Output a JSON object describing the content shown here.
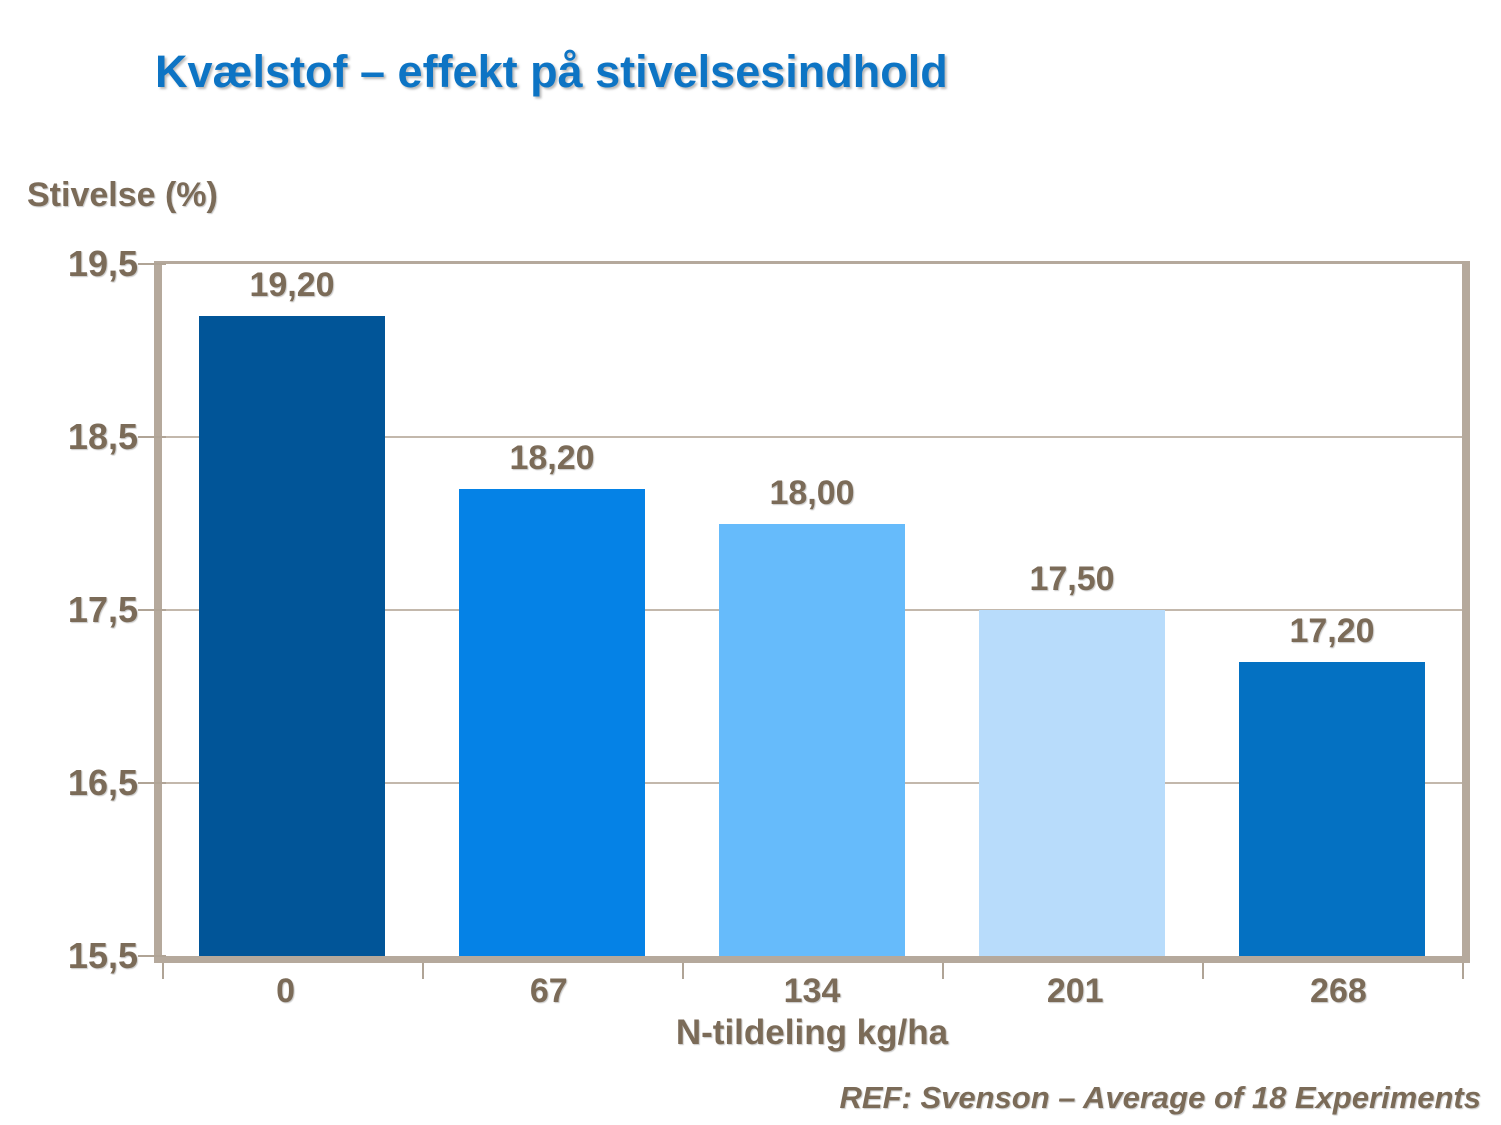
{
  "header": {
    "title": "Kvælstof – effekt på stivelsesindhold"
  },
  "footer": {
    "text": "REF: Svenson – Average of 18 Experiments"
  },
  "chart_data": {
    "type": "bar",
    "title": "Kvælstof – effekt på stivelsesindhold",
    "y_axis_title": "Stivelse (%)",
    "xlabel": "N-tildeling kg/ha",
    "categories": [
      "0",
      "67",
      "134",
      "201",
      "268"
    ],
    "values": [
      19.2,
      18.2,
      18.0,
      17.5,
      17.2
    ],
    "value_labels": [
      "19,20",
      "18,20",
      "18,00",
      "17,50",
      "17,20"
    ],
    "y_tick_labels": [
      "19,5",
      "18,5",
      "17,5",
      "16,5",
      "15,5"
    ],
    "ylim": [
      15.5,
      19.5
    ],
    "grid": true,
    "legend": false,
    "annotation": "REF: Svenson – Average of 18 Experiments",
    "bar_colors": [
      "#015598",
      "#0582e6",
      "#66bbfb",
      "#b8dcfb",
      "#0471c2"
    ]
  },
  "colors": {
    "title_blue": "#0d74c4",
    "text_brown": "#7b6b58",
    "axis_frame": "#b5a99c",
    "gridline": "#c3b8ac",
    "background": "#ffffff"
  }
}
